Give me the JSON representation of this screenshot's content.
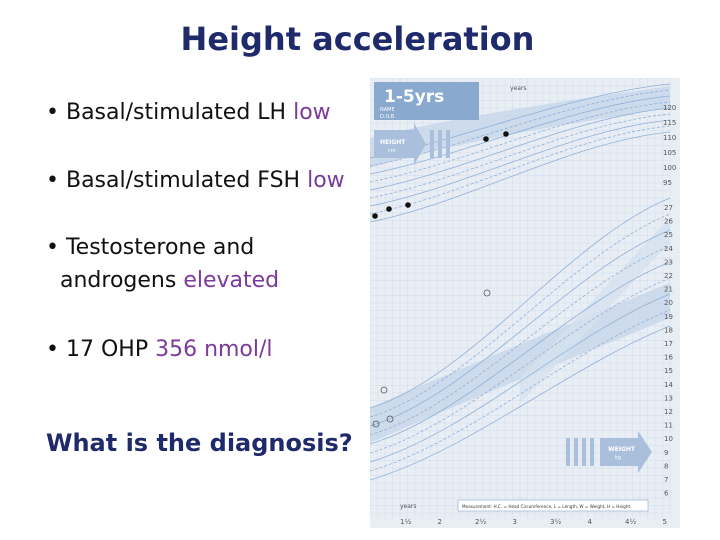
{
  "slide": {
    "title": "Height acceleration",
    "bullets": [
      {
        "prefix": "• Basal/stimulated LH ",
        "highlight": "low"
      },
      {
        "prefix": "• Basal/stimulated FSH ",
        "highlight": "low"
      },
      {
        "prefix": "• Testosterone and",
        "line2": "androgens ",
        "highlight": "elevated"
      },
      {
        "prefix": "• 17 OHP ",
        "highlight": "356 nmol/l"
      }
    ],
    "question": "What is the diagnosis?"
  },
  "growth_chart": {
    "age_badge": "1-5yrs",
    "name_label": "NAME",
    "dob_label": "D.O.B.",
    "years_label": "years",
    "height_label_top": "HEIGHT",
    "height_unit_top": "cm",
    "weight_label": "WEIGHT",
    "weight_unit": "kg",
    "measurement_note": "Measurement: H.C. = Head Circumference, L = Length, W = Weight, H = Height",
    "x_ticks": [
      "1½",
      "2",
      "2½",
      "3",
      "3½",
      "4",
      "4½",
      "5"
    ],
    "height_ticks": [
      "120",
      "115",
      "110",
      "105",
      "100",
      "95"
    ],
    "weight_ticks": [
      "27",
      "26",
      "25",
      "24",
      "23",
      "22",
      "21",
      "20",
      "19",
      "18",
      "17",
      "16",
      "15",
      "14",
      "13",
      "12",
      "11",
      "10",
      "9",
      "8",
      "7",
      "6"
    ],
    "colors": {
      "paper": "#e9eef5",
      "band": "#bfd0e6",
      "grid": "#c9d7ea",
      "curve": "#8fb0d8",
      "badge": "#8aa9cf",
      "ink": "#111111"
    }
  }
}
